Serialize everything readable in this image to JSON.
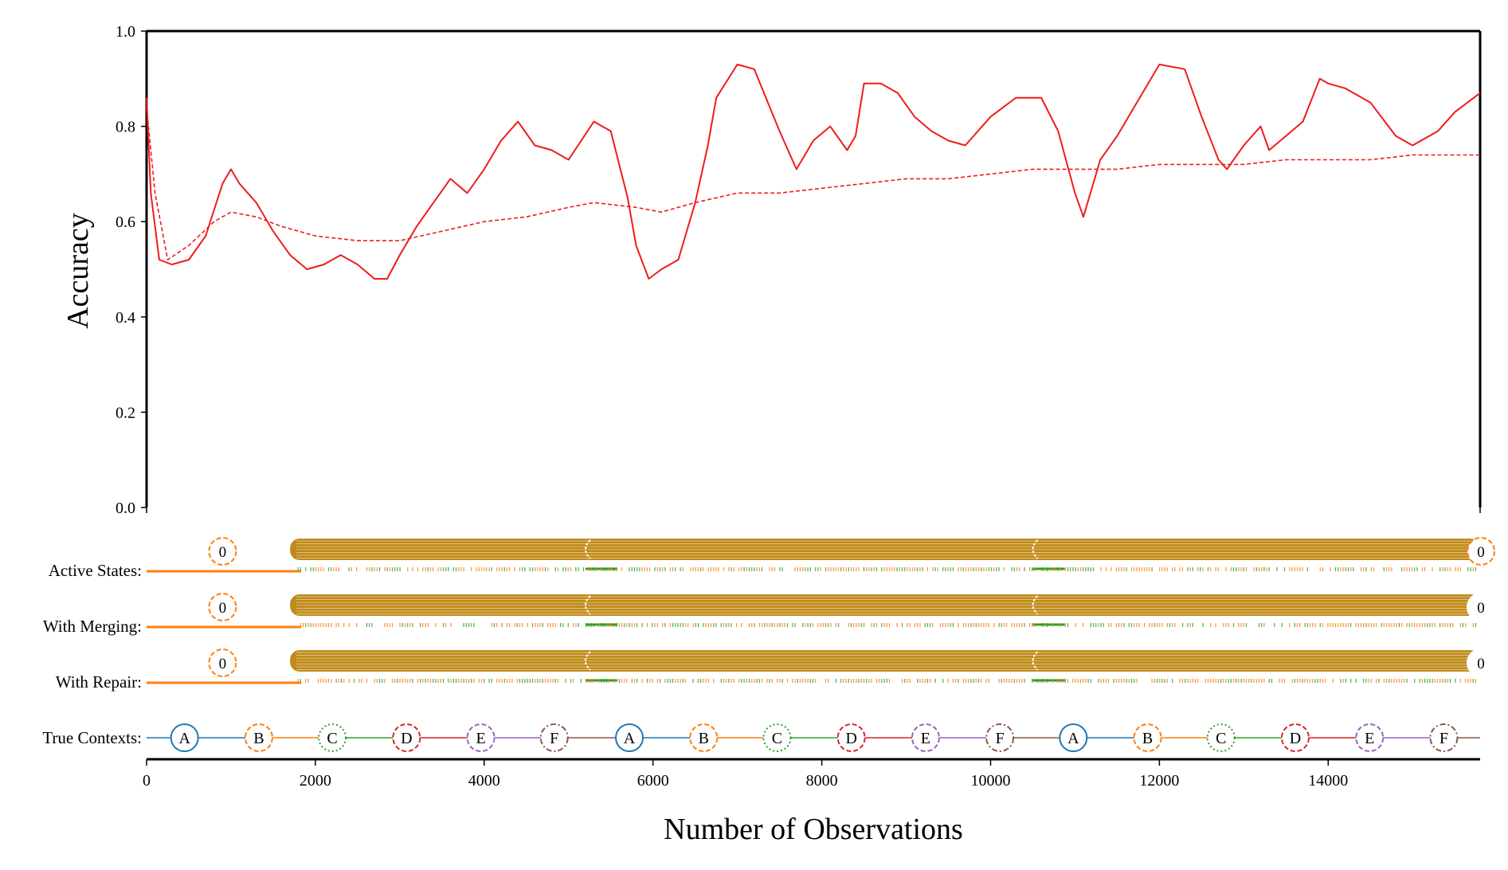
{
  "chart_data": {
    "type": "line",
    "xlabel": "Number of Observations",
    "ylabel": "Accuracy",
    "xlim": [
      0,
      15800
    ],
    "ylim": [
      0,
      1
    ],
    "x_ticks": [
      "0",
      "2000",
      "4000",
      "6000",
      "8000",
      "10000",
      "12000",
      "14000"
    ],
    "y_ticks": [
      "0.0",
      "0.2",
      "0.4",
      "0.6",
      "0.8",
      "1.0"
    ],
    "grid": false,
    "legend": "none",
    "colors": {
      "accuracy": "#ee1c1c",
      "state": "#ff7f0e",
      "active_band": "#c08b1a",
      "noise_green": "#2ca02c"
    },
    "series": [
      {
        "style": "solid",
        "x": [
          0,
          50,
          150,
          300,
          500,
          700,
          900,
          1000,
          1100,
          1300,
          1500,
          1700,
          1900,
          2100,
          2300,
          2500,
          2700,
          2850,
          3000,
          3200,
          3400,
          3600,
          3800,
          4000,
          4200,
          4400,
          4600,
          4800,
          5000,
          5300,
          5500,
          5700,
          5800,
          5950,
          6100,
          6300,
          6500,
          6650,
          6750,
          7000,
          7200,
          7500,
          7700,
          7800,
          7900,
          8100,
          8300,
          8400,
          8500,
          8700,
          8900,
          9100,
          9300,
          9500,
          9700,
          10000,
          10300,
          10600,
          10800,
          11000,
          11100,
          11300,
          11500,
          11800,
          12000,
          12300,
          12500,
          12700,
          12800,
          13000,
          13200,
          13300,
          13500,
          13700,
          13900,
          14000,
          14200,
          14500,
          14800,
          15000,
          15300,
          15500,
          15800
        ],
        "y": [
          0.86,
          0.66,
          0.52,
          0.51,
          0.52,
          0.57,
          0.68,
          0.71,
          0.68,
          0.64,
          0.58,
          0.53,
          0.5,
          0.51,
          0.53,
          0.51,
          0.48,
          0.48,
          0.53,
          0.59,
          0.64,
          0.69,
          0.66,
          0.71,
          0.77,
          0.81,
          0.76,
          0.75,
          0.73,
          0.81,
          0.79,
          0.65,
          0.55,
          0.48,
          0.5,
          0.52,
          0.64,
          0.76,
          0.86,
          0.93,
          0.92,
          0.79,
          0.71,
          0.74,
          0.77,
          0.8,
          0.75,
          0.78,
          0.89,
          0.89,
          0.87,
          0.82,
          0.79,
          0.77,
          0.76,
          0.82,
          0.86,
          0.86,
          0.79,
          0.66,
          0.61,
          0.73,
          0.78,
          0.87,
          0.93,
          0.92,
          0.82,
          0.73,
          0.71,
          0.76,
          0.8,
          0.75,
          0.78,
          0.81,
          0.9,
          0.89,
          0.88,
          0.85,
          0.78,
          0.76,
          0.79,
          0.83,
          0.87
        ]
      },
      {
        "style": "dashed",
        "x": [
          0,
          100,
          250,
          500,
          800,
          1000,
          1300,
          1600,
          2000,
          2500,
          3000,
          3500,
          4000,
          4500,
          5000,
          5300,
          5800,
          6100,
          6500,
          7000,
          7500,
          8000,
          8500,
          9000,
          9500,
          10000,
          10500,
          11000,
          11500,
          12000,
          12500,
          13000,
          13500,
          14000,
          14500,
          15000,
          15800
        ],
        "y": [
          0.84,
          0.66,
          0.52,
          0.55,
          0.6,
          0.62,
          0.61,
          0.59,
          0.57,
          0.56,
          0.56,
          0.58,
          0.6,
          0.61,
          0.63,
          0.64,
          0.63,
          0.62,
          0.64,
          0.66,
          0.66,
          0.67,
          0.68,
          0.69,
          0.69,
          0.7,
          0.71,
          0.71,
          0.71,
          0.72,
          0.72,
          0.72,
          0.73,
          0.73,
          0.73,
          0.74,
          0.74
        ]
      }
    ],
    "state_rows": [
      {
        "label": "Active States:",
        "start_state_label": "0",
        "start_state_x": 900,
        "bundle_start": 1700,
        "bundle_end": 15800,
        "breaks": [
          5200,
          10500
        ],
        "end_state_label": "0",
        "end_state_style": "dashed"
      },
      {
        "label": "With Merging:",
        "start_state_label": "0",
        "start_state_x": 900,
        "bundle_start": 1700,
        "bundle_end": 15800,
        "breaks": [
          5200,
          10500
        ],
        "end_state_label": "0",
        "end_state_style": "plain"
      },
      {
        "label": "With Repair:",
        "start_state_label": "0",
        "start_state_x": 900,
        "bundle_start": 1700,
        "bundle_end": 15800,
        "breaks": [
          5200,
          10500
        ],
        "end_state_label": "0",
        "end_state_style": "plain"
      }
    ],
    "true_contexts": {
      "label": "True Contexts:",
      "items": [
        {
          "label": "A",
          "x": 450,
          "color": "#1f77b4",
          "style": "solid"
        },
        {
          "label": "B",
          "x": 1330,
          "color": "#ff7f0e",
          "style": "dashed"
        },
        {
          "label": "C",
          "x": 2200,
          "color": "#2ca02c",
          "style": "dotted"
        },
        {
          "label": "D",
          "x": 3080,
          "color": "#d62728",
          "style": "dashed"
        },
        {
          "label": "E",
          "x": 3960,
          "color": "#9467bd",
          "style": "dashed"
        },
        {
          "label": "F",
          "x": 4830,
          "color": "#8c564b",
          "style": "dashdot"
        },
        {
          "label": "A",
          "x": 5720,
          "color": "#1f77b4",
          "style": "solid"
        },
        {
          "label": "B",
          "x": 6600,
          "color": "#ff7f0e",
          "style": "dashed"
        },
        {
          "label": "C",
          "x": 7470,
          "color": "#2ca02c",
          "style": "dotted"
        },
        {
          "label": "D",
          "x": 8350,
          "color": "#d62728",
          "style": "dashed"
        },
        {
          "label": "E",
          "x": 9230,
          "color": "#9467bd",
          "style": "dashed"
        },
        {
          "label": "F",
          "x": 10110,
          "color": "#8c564b",
          "style": "dashdot"
        },
        {
          "label": "A",
          "x": 10980,
          "color": "#1f77b4",
          "style": "solid"
        },
        {
          "label": "B",
          "x": 11860,
          "color": "#ff7f0e",
          "style": "dashed"
        },
        {
          "label": "C",
          "x": 12730,
          "color": "#2ca02c",
          "style": "dotted"
        },
        {
          "label": "D",
          "x": 13610,
          "color": "#d62728",
          "style": "dashed"
        },
        {
          "label": "E",
          "x": 14490,
          "color": "#9467bd",
          "style": "dashed"
        },
        {
          "label": "F",
          "x": 15370,
          "color": "#8c564b",
          "style": "dashdot"
        }
      ]
    }
  }
}
